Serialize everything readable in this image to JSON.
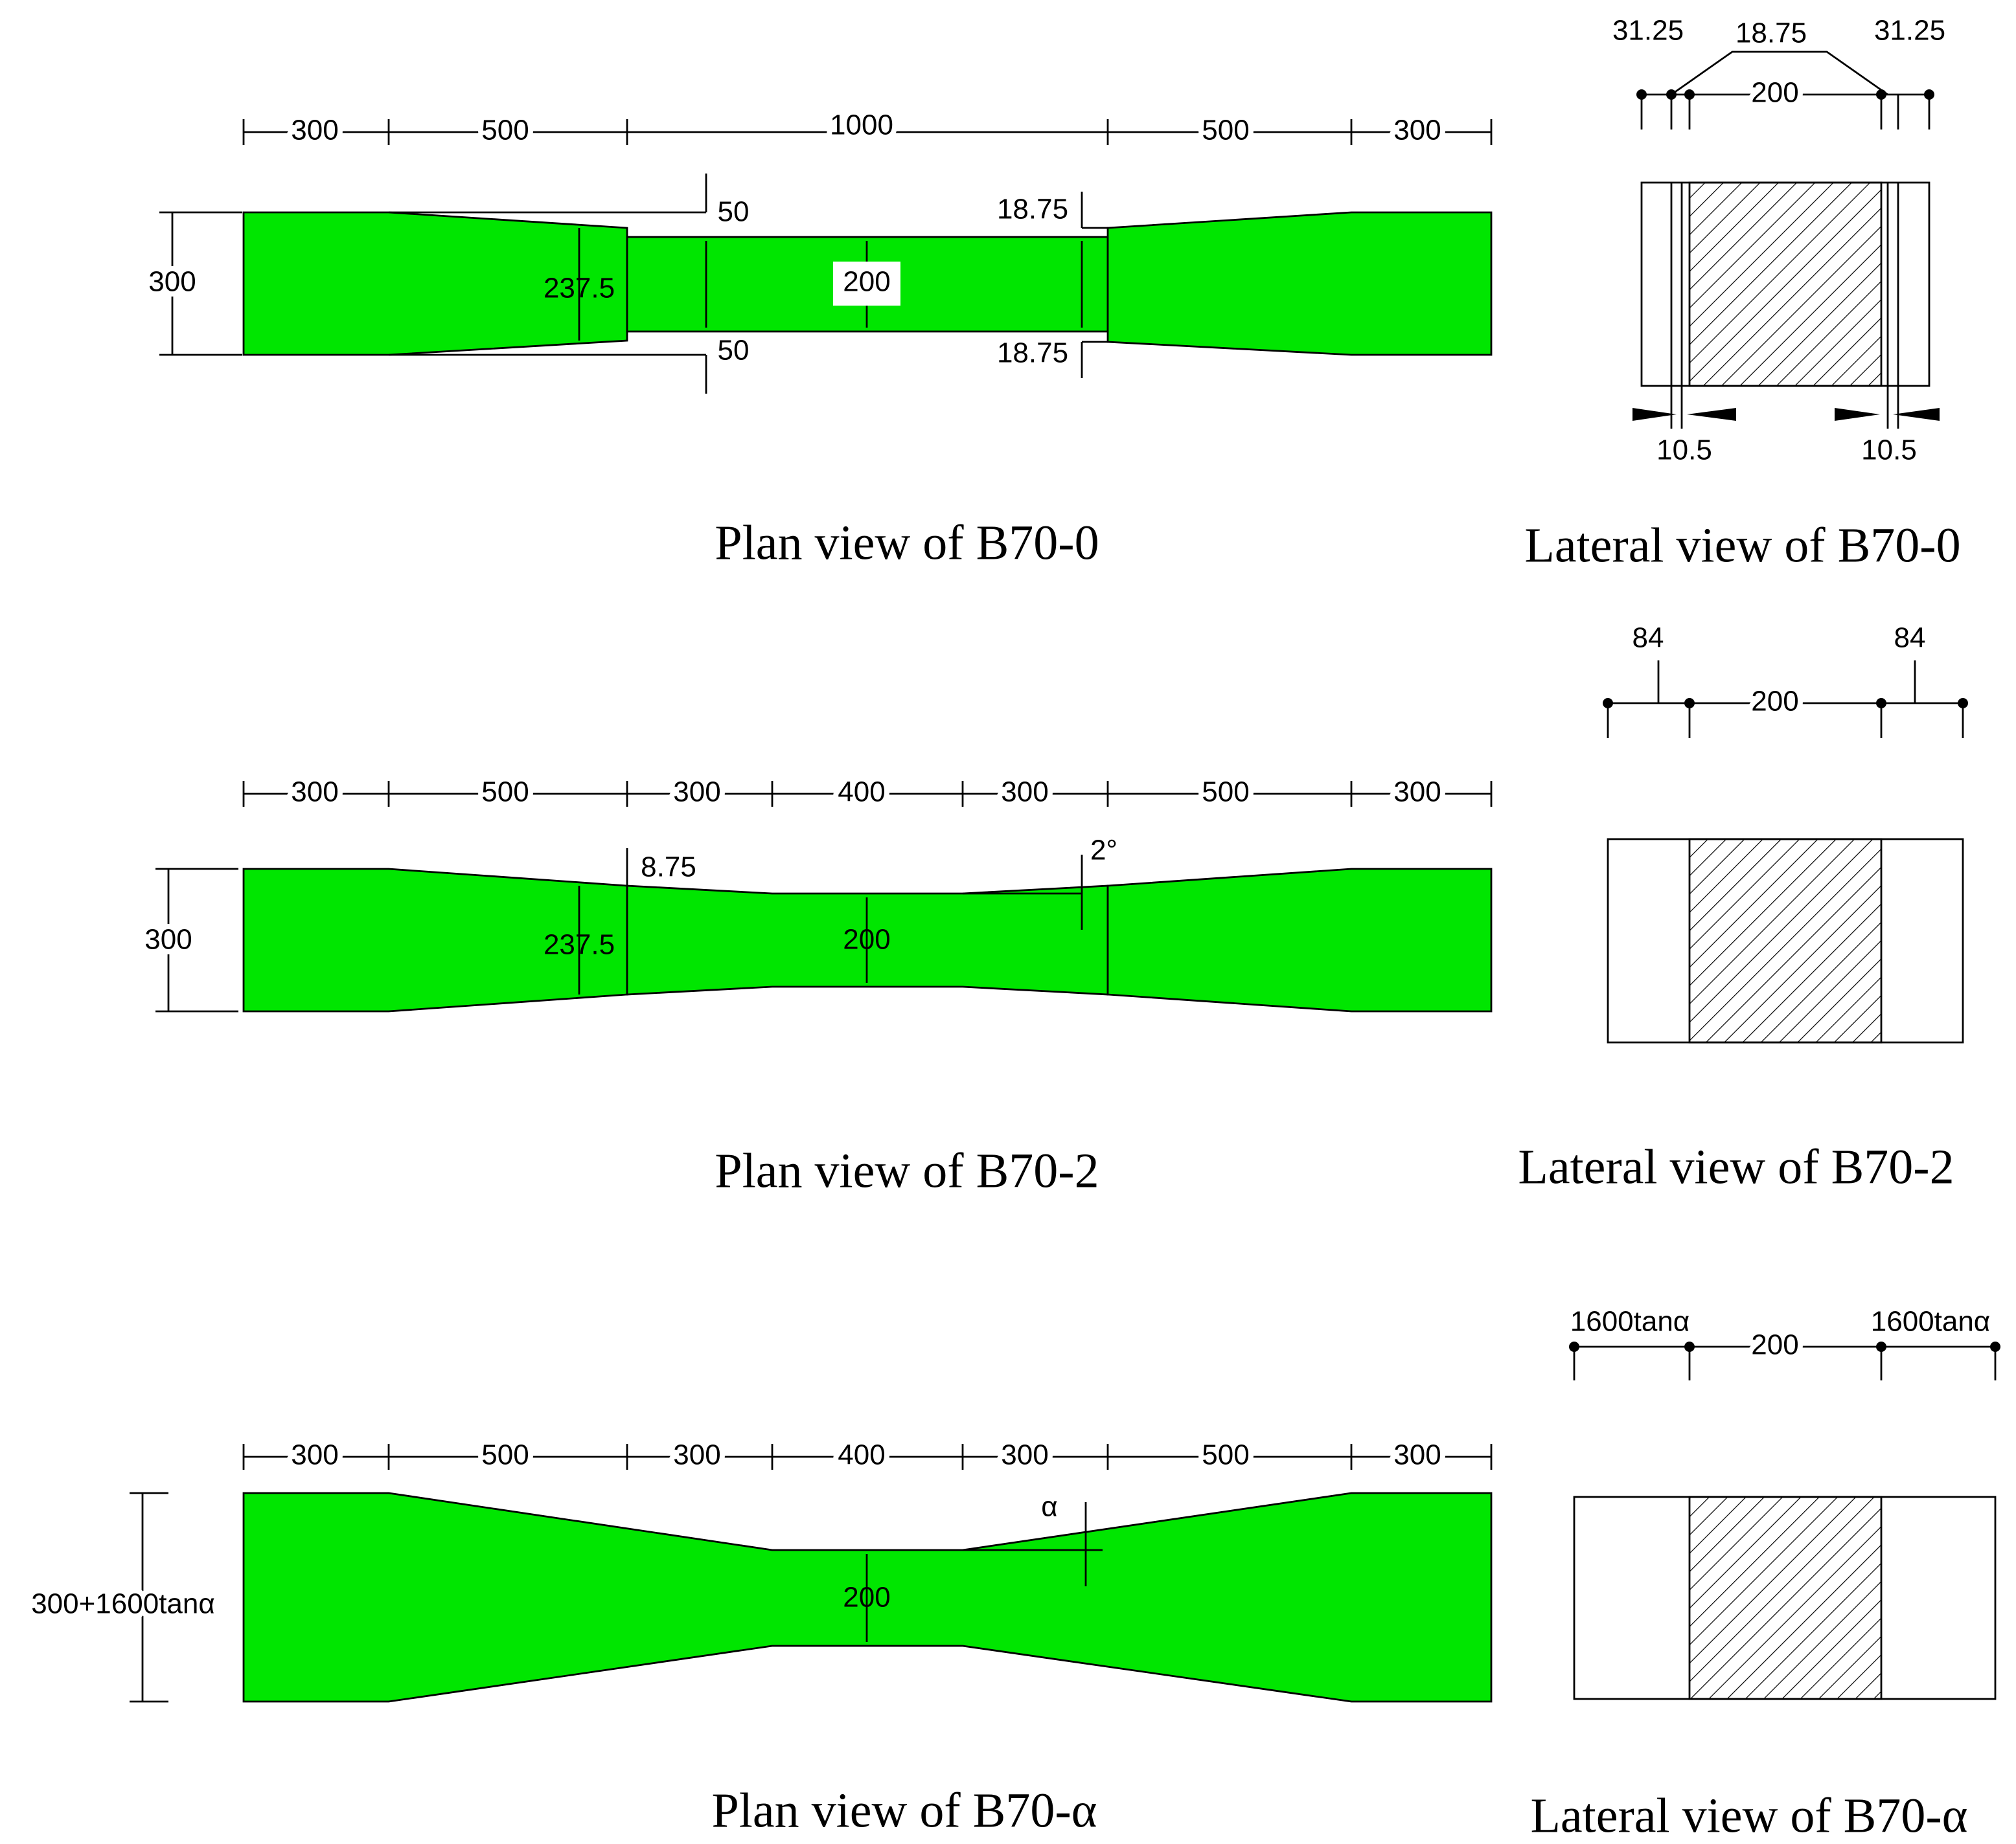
{
  "plan_views": [
    {
      "caption": "Plan view of B70-0",
      "labels": [
        "300",
        "500",
        "1000",
        "500",
        "300",
        "300",
        "50",
        "50",
        "18.75",
        "18.75",
        "237.5",
        "200"
      ]
    },
    {
      "caption": "Plan view of B70-2",
      "labels": [
        "300",
        "500",
        "300",
        "400",
        "300",
        "500",
        "300",
        "300",
        "8.75",
        "2°",
        "237.5",
        "200"
      ]
    },
    {
      "caption": "Plan view of B70-α",
      "labels": [
        "300",
        "500",
        "300",
        "400",
        "300",
        "500",
        "300",
        "300+1600tanα",
        "α",
        "200"
      ]
    }
  ],
  "lateral_views": [
    {
      "caption": "Lateral view of B70-0",
      "labels": [
        "31.25",
        "18.75",
        "31.25",
        "200",
        "10.5",
        "10.5"
      ]
    },
    {
      "caption": "Lateral view of B70-2",
      "labels": [
        "84",
        "84",
        "200"
      ]
    },
    {
      "caption": "Lateral view of B70-α",
      "labels": [
        "1600tanα",
        "200",
        "1600tanα"
      ]
    }
  ]
}
